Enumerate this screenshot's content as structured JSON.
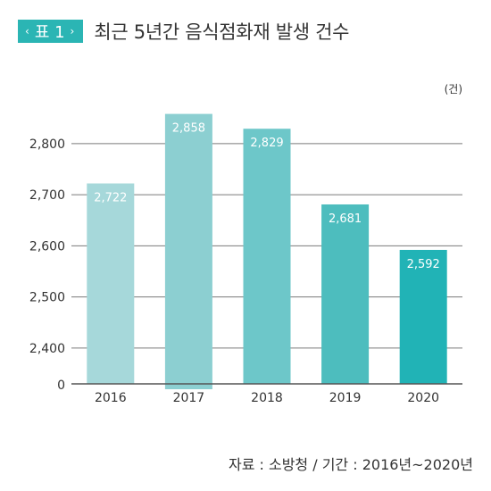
{
  "header": {
    "badge_left": "‹",
    "badge_text": "표 1",
    "badge_right": "›",
    "badge_color": "#2bb5b4",
    "title": "최근 5년간 음식점화재 발생 건수"
  },
  "source": "자료 : 소방청 / 기간 : 2016년~2020년",
  "chart_data": {
    "type": "bar",
    "unit": "(건)",
    "categories": [
      "2016",
      "2017",
      "2018",
      "2019",
      "2020"
    ],
    "values": [
      2722,
      2858,
      2829,
      2681,
      2592
    ],
    "value_labels": [
      "2,722",
      "2,858",
      "2,829",
      "2,681",
      "2,592"
    ],
    "bar_colors": [
      "#a6d8da",
      "#8ccfd1",
      "#6dc7c9",
      "#4dbdbe",
      "#21b3b6"
    ],
    "yticks": [
      2400,
      2500,
      2600,
      2700,
      2800
    ],
    "ytick_labels": [
      "2,400",
      "2,500",
      "2,600",
      "2,700",
      "2,800"
    ],
    "baseline_label": "0",
    "ylim": [
      2330,
      2880
    ],
    "axis_break": true,
    "grid": true,
    "xlabel": "",
    "ylabel": ""
  }
}
